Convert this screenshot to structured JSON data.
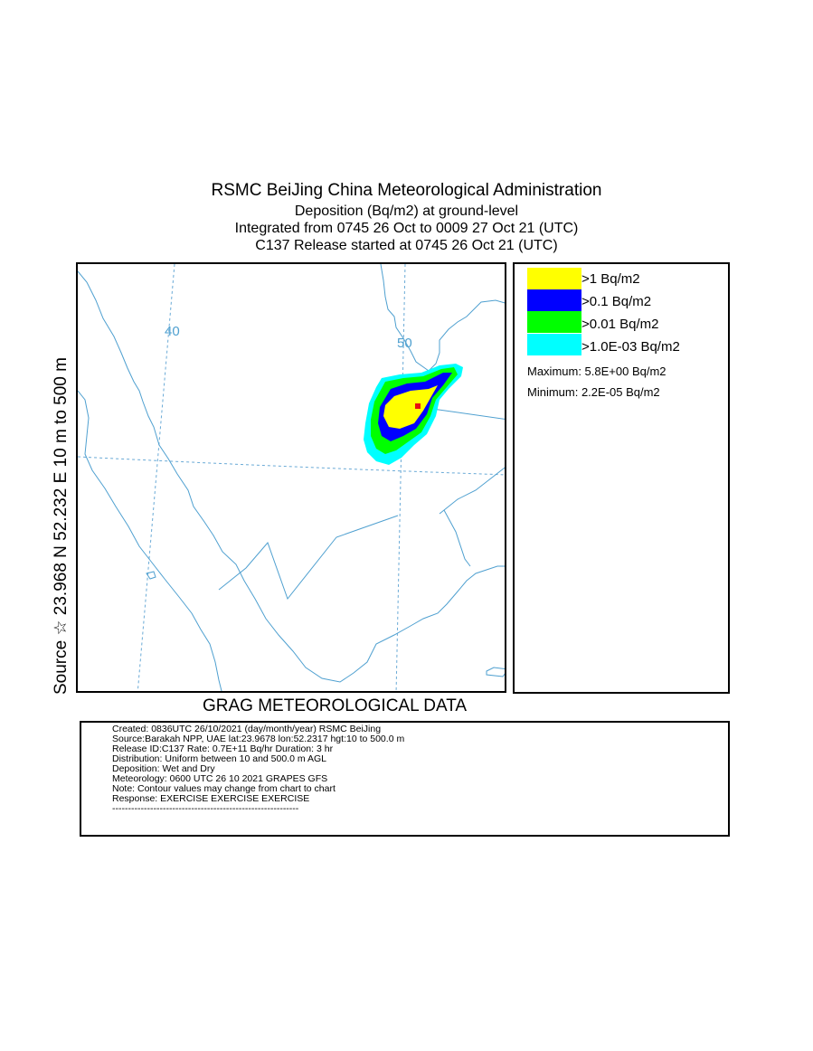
{
  "header": {
    "title": "RSMC BeiJing China Meteorological Administration",
    "line2": "Deposition  (Bq/m2) at ground-level",
    "line3": "Integrated from 0745 26 Oct to 0009 27 Oct 21 (UTC)",
    "line4": "C137 Release started at 0745 26 Oct 21 (UTC)"
  },
  "side_label": "Source ☆  23.968  N  52.232  E     10 m to  500 m",
  "map": {
    "lon_labels": [
      "40",
      "50"
    ],
    "coastline_color": "#4fa0d0",
    "grid_color": "#6aaad6",
    "source_marker_color": "#e81010"
  },
  "legend": {
    "items": [
      {
        "label": ">1 Bq/m2",
        "color": "#ffff00"
      },
      {
        "label": ">0.1 Bq/m2",
        "color": "#0000ff"
      },
      {
        "label": ">0.01 Bq/m2",
        "color": "#00ff00"
      },
      {
        "label": ">1.0E-03 Bq/m2",
        "color": "#00ffff"
      }
    ],
    "maximum": "Maximum: 5.8E+00 Bq/m2",
    "minimum": "Minimum: 2.2E-05 Bq/m2"
  },
  "data_source": "GRAG METEOROLOGICAL DATA",
  "info": {
    "lines": [
      "Created: 0836UTC 26/10/2021 (day/month/year) RSMC BeiJing",
      "Source:Barakah NPP, UAE  lat:23.9678  lon:52.2317  hgt:10 to 500.0 m",
      "Release ID:C137   Rate: 0.7E+11 Bq/hr  Duration: 3 hr",
      "Distribution: Uniform between 10 and 500.0 m AGL",
      "Deposition:   Wet and Dry",
      "Meteorology: 0600 UTC 26 10 2021 GRAPES GFS",
      "Note: Contour values may change from chart to chart",
      "Response: EXERCISE  EXERCISE  EXERCISE",
      "-----------------------------------------------------------"
    ]
  }
}
